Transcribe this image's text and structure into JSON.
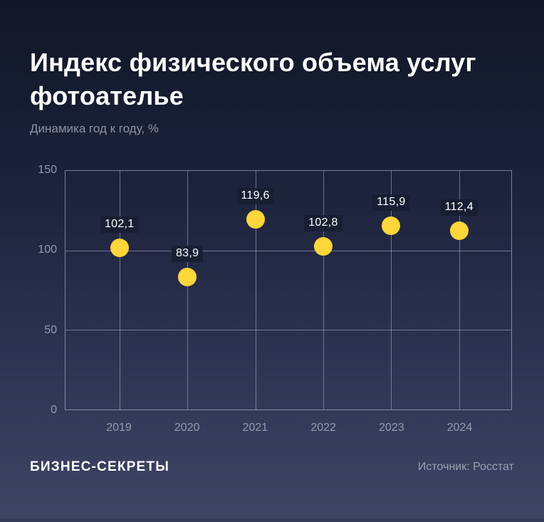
{
  "header": {
    "title": "Индекс физического объема услуг фотоателье",
    "subtitle": "Динамика год к году, %"
  },
  "footer": {
    "brand": "БИЗНЕС-СЕКРЕТЫ",
    "source": "Источник: Росстат"
  },
  "colors": {
    "background_top": "#111727",
    "background_bottom": "#3f4665",
    "point": "#fcd63a",
    "grid": "rgba(205,210,225,0.45)",
    "value_label_text": "#ffffff",
    "value_label_chip": "rgba(24,30,50,0.92)",
    "axis_text": "#959bac",
    "title_text": "#ffffff",
    "subtitle_text": "#8f95a7"
  },
  "chart_data": {
    "type": "scatter",
    "title": "Индекс физического объема услуг фотоателье",
    "subtitle": "Динамика год к году, %",
    "categories": [
      "2019",
      "2020",
      "2021",
      "2022",
      "2023",
      "2024"
    ],
    "values": [
      102.1,
      83.9,
      119.6,
      102.8,
      115.9,
      112.4
    ],
    "value_labels": [
      "102,1",
      "83,9",
      "119,6",
      "102,8",
      "115,9",
      "112,4"
    ],
    "xlabel": "",
    "ylabel": "Динамика год к году, %",
    "ylim": [
      0,
      150
    ],
    "yticks": [
      0,
      50,
      100,
      150
    ],
    "ytick_labels": [
      "0",
      "50",
      "100",
      "150"
    ],
    "grid": true,
    "legend": "none",
    "point_color": "#fcd63a"
  }
}
